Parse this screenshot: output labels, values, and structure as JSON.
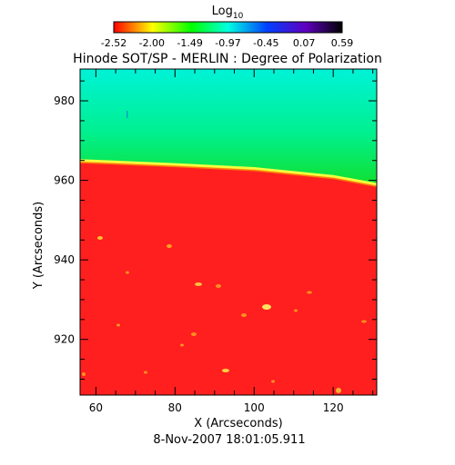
{
  "chart_data": {
    "type": "heatmap",
    "title": "Hinode SOT/SP - MERLIN : Degree of Polarization",
    "colorbar": {
      "label_base": "Log",
      "label_sub": "10",
      "ticks": [
        "-2.52",
        "-2.00",
        "-1.49",
        "-0.97",
        "-0.45",
        "0.07",
        "0.59"
      ],
      "range": [
        -2.52,
        0.59
      ],
      "placement": "top"
    },
    "xlabel": "X (Arcseconds)",
    "ylabel": "Y (Arcseconds)",
    "xlim": [
      56,
      131
    ],
    "ylim": [
      906,
      988
    ],
    "xticks": [
      "60",
      "80",
      "100",
      "120"
    ],
    "yticks": [
      "920",
      "940",
      "960",
      "980"
    ],
    "xtick_values": [
      60,
      80,
      100,
      120
    ],
    "ytick_values": [
      920,
      940,
      960,
      980
    ],
    "limb_boundary": {
      "x": [
        56,
        80,
        100,
        120,
        131
      ],
      "y": [
        965,
        964,
        963,
        961,
        959
      ]
    },
    "regions": [
      {
        "name": "off-limb",
        "color": "#00f0b0",
        "log_dop_range": [
          -1.3,
          -0.9
        ]
      },
      {
        "name": "disk",
        "color": "#ff2020",
        "log_dop": -2.52
      }
    ],
    "grid": false,
    "date": "8-Nov-2007 18:01:05.911"
  }
}
